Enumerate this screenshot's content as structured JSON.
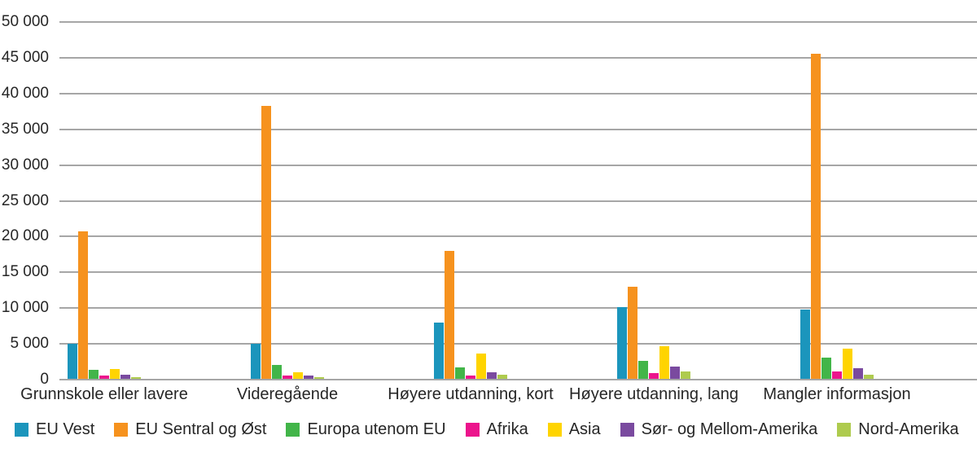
{
  "chart_data": {
    "type": "bar",
    "title": "",
    "xlabel": "",
    "ylabel": "",
    "grid": true,
    "legend_position": "bottom",
    "ylim": [
      0,
      50000
    ],
    "ytick_step": 5000,
    "ytick_labels": [
      "0",
      "5 000",
      "10 000",
      "15 000",
      "20 000",
      "25 000",
      "30 000",
      "35 000",
      "40 000",
      "45 000",
      "50 000"
    ],
    "categories": [
      "Grunnskole eller lavere",
      "Videregående",
      "Høyere utdanning, kort",
      "Høyere utdanning, lang",
      "Mangler informasjon"
    ],
    "series": [
      {
        "name": "EU Vest",
        "color": "#1b95bc",
        "values": [
          4900,
          4900,
          7900,
          10000,
          9700
        ]
      },
      {
        "name": "EU Sentral og Øst",
        "color": "#f6921e",
        "values": [
          20600,
          38200,
          17900,
          12900,
          45500
        ]
      },
      {
        "name": "Europa utenom EU",
        "color": "#42b549",
        "values": [
          1250,
          1900,
          1650,
          2500,
          3000
        ]
      },
      {
        "name": "Afrika",
        "color": "#ec148c",
        "values": [
          500,
          450,
          500,
          750,
          1050
        ]
      },
      {
        "name": "Asia",
        "color": "#ffd400",
        "values": [
          1400,
          900,
          3500,
          4600,
          4200
        ]
      },
      {
        "name": "Sør- og Mellom-Amerika",
        "color": "#7a4a9f",
        "values": [
          550,
          500,
          950,
          1700,
          1450
        ]
      },
      {
        "name": "Nord-Amerika",
        "color": "#aecb4e",
        "values": [
          270,
          250,
          550,
          1000,
          600
        ]
      }
    ]
  },
  "colors": {
    "grid": "#a6a6a6",
    "text": "#262626",
    "background": "#ffffff"
  }
}
